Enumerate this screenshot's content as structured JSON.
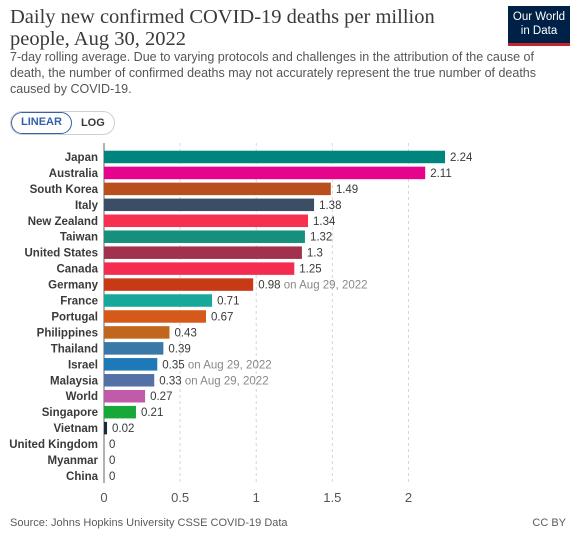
{
  "header": {
    "title": "Daily new confirmed COVID-19 deaths per million people, Aug 30, 2022",
    "subtitle": "7-day rolling average. Due to varying protocols and challenges in the attribution of the cause of death, the number of confirmed deaths may not accurately represent the true number of deaths caused by COVID-19.",
    "logo_line1": "Our World",
    "logo_line2": "in Data"
  },
  "controls": {
    "linear_label": "LINEAR",
    "log_label": "LOG",
    "selected": "LINEAR"
  },
  "footer": {
    "source": "Source: Johns Hopkins University CSSE COVID-19 Data",
    "license": "CC BY"
  },
  "colors": {
    "logo_bg": "#002147",
    "logo_accent": "#c5252d",
    "toggle_active": "#3360a9"
  },
  "chart_data": {
    "type": "bar",
    "orientation": "horizontal",
    "categories": [
      "Japan",
      "Australia",
      "South Korea",
      "Italy",
      "New Zealand",
      "Taiwan",
      "United States",
      "Canada",
      "Germany",
      "France",
      "Portugal",
      "Philippines",
      "Thailand",
      "Israel",
      "Malaysia",
      "World",
      "Singapore",
      "Vietnam",
      "United Kingdom",
      "Myanmar",
      "China"
    ],
    "values": [
      2.24,
      2.11,
      1.49,
      1.38,
      1.34,
      1.32,
      1.3,
      1.25,
      0.98,
      0.71,
      0.67,
      0.43,
      0.39,
      0.35,
      0.33,
      0.27,
      0.21,
      0.02,
      0,
      0,
      0
    ],
    "value_labels": [
      "2.24",
      "2.11",
      "1.49",
      "1.38",
      "1.34",
      "1.32",
      "1.3",
      "1.25",
      "0.98",
      "0.71",
      "0.67",
      "0.43",
      "0.39",
      "0.35",
      "0.33",
      "0.27",
      "0.21",
      "0.02",
      "0",
      "0",
      "0"
    ],
    "annotations": [
      "",
      "",
      "",
      "",
      "",
      "",
      "",
      "",
      "on Aug 29, 2022",
      "",
      "",
      "",
      "",
      "on Aug 29, 2022",
      "on Aug 29, 2022",
      "",
      "",
      "",
      "",
      "",
      ""
    ],
    "colors": [
      "#00847e",
      "#e6048c",
      "#b84f1c",
      "#3c4e66",
      "#f6304e",
      "#14907c",
      "#a2314d",
      "#f32c50",
      "#c83a16",
      "#18a89a",
      "#d5591a",
      "#c1661d",
      "#3a78a8",
      "#1d79b7",
      "#5471a6",
      "#c05aa9",
      "#18a83a",
      "#1c2b3a",
      "#3a3a3a",
      "#3a3a3a",
      "#3a3a3a"
    ],
    "xticks": [
      "0",
      "0.5",
      "1",
      "1.5",
      "2"
    ],
    "xlim": [
      0,
      2.24
    ],
    "grid": true,
    "title": "Daily new confirmed COVID-19 deaths per million people, Aug 30, 2022"
  }
}
